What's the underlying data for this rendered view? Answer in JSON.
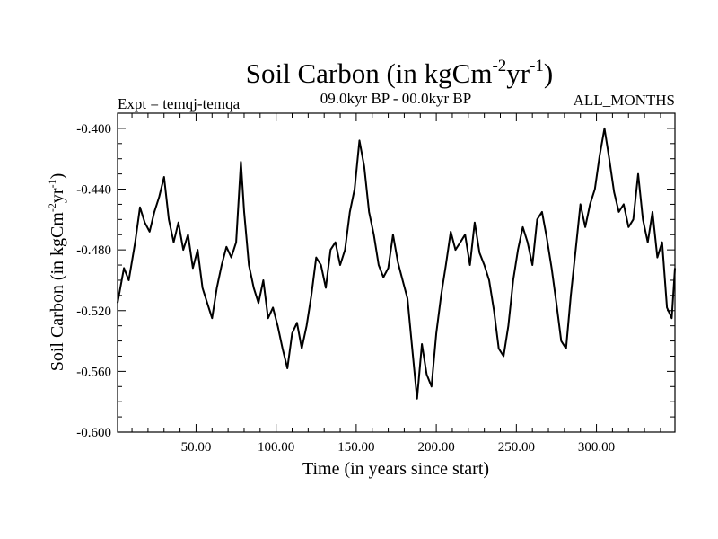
{
  "chart_data": {
    "type": "line",
    "title": "Soil Carbon (in kgCm-2yr-1)",
    "title_parts": {
      "main": "Soil Carbon (in kgCm",
      "exp1": "-2",
      "mid": "yr",
      "exp2": "-1",
      "end": ")"
    },
    "subtitle_left": "Expt = temqj-temqa",
    "subtitle_center": "09.0kyr BP - 00.0kyr BP",
    "subtitle_right": "ALL_MONTHS",
    "xlabel": "Time (in years since start)",
    "ylabel": "Soil Carbon (in kgCm-2yr-1)",
    "ylabel_parts": {
      "main": "Soil Carbon (in kgCm",
      "exp1": "-2",
      "mid": "yr",
      "exp2": "-1",
      "end": ")"
    },
    "xlim": [
      1,
      349
    ],
    "ylim": [
      -0.6,
      -0.39
    ],
    "xticks": [
      50,
      100,
      150,
      200,
      250,
      300
    ],
    "xtick_labels": [
      "50.00",
      "100.00",
      "150.00",
      "200.00",
      "250.00",
      "300.00"
    ],
    "yticks": [
      -0.4,
      -0.44,
      -0.48,
      -0.52,
      -0.56,
      -0.6
    ],
    "ytick_labels": [
      "-0.400",
      "-0.440",
      "-0.480",
      "-0.520",
      "-0.560",
      "-0.600"
    ],
    "series": [
      {
        "name": "Soil Carbon",
        "x": [
          1,
          5,
          8,
          12,
          15,
          18,
          21,
          24,
          27,
          30,
          33,
          36,
          39,
          42,
          45,
          48,
          51,
          54,
          57,
          60,
          63,
          66,
          69,
          72,
          75,
          78,
          80,
          83,
          86,
          89,
          92,
          95,
          98,
          101,
          104,
          107,
          110,
          113,
          116,
          119,
          122,
          125,
          128,
          131,
          134,
          137,
          140,
          143,
          146,
          149,
          152,
          155,
          158,
          161,
          164,
          167,
          170,
          173,
          176,
          179,
          182,
          185,
          188,
          191,
          194,
          197,
          200,
          203,
          206,
          209,
          212,
          215,
          218,
          221,
          224,
          227,
          230,
          233,
          236,
          239,
          242,
          245,
          248,
          251,
          254,
          257,
          260,
          263,
          266,
          269,
          272,
          275,
          278,
          281,
          284,
          287,
          290,
          293,
          296,
          299,
          302,
          305,
          308,
          311,
          314,
          317,
          320,
          323,
          326,
          329,
          332,
          335,
          338,
          341,
          344,
          347,
          349
        ],
        "y": [
          -0.515,
          -0.492,
          -0.5,
          -0.475,
          -0.452,
          -0.462,
          -0.468,
          -0.455,
          -0.445,
          -0.432,
          -0.46,
          -0.475,
          -0.462,
          -0.48,
          -0.47,
          -0.492,
          -0.48,
          -0.505,
          -0.515,
          -0.525,
          -0.505,
          -0.49,
          -0.478,
          -0.485,
          -0.475,
          -0.422,
          -0.455,
          -0.49,
          -0.505,
          -0.515,
          -0.5,
          -0.525,
          -0.518,
          -0.53,
          -0.545,
          -0.558,
          -0.535,
          -0.528,
          -0.545,
          -0.53,
          -0.51,
          -0.485,
          -0.49,
          -0.505,
          -0.48,
          -0.475,
          -0.49,
          -0.48,
          -0.455,
          -0.44,
          -0.408,
          -0.425,
          -0.455,
          -0.47,
          -0.49,
          -0.498,
          -0.492,
          -0.47,
          -0.488,
          -0.5,
          -0.512,
          -0.545,
          -0.578,
          -0.542,
          -0.562,
          -0.57,
          -0.535,
          -0.51,
          -0.49,
          -0.468,
          -0.48,
          -0.475,
          -0.47,
          -0.49,
          -0.462,
          -0.482,
          -0.49,
          -0.5,
          -0.52,
          -0.545,
          -0.55,
          -0.53,
          -0.5,
          -0.48,
          -0.465,
          -0.475,
          -0.49,
          -0.46,
          -0.455,
          -0.472,
          -0.492,
          -0.515,
          -0.54,
          -0.545,
          -0.51,
          -0.48,
          -0.45,
          -0.465,
          -0.45,
          -0.44,
          -0.418,
          -0.4,
          -0.42,
          -0.442,
          -0.455,
          -0.45,
          -0.465,
          -0.46,
          -0.43,
          -0.46,
          -0.475,
          -0.455,
          -0.485,
          -0.475,
          -0.518,
          -0.525,
          -0.492
        ]
      }
    ]
  }
}
